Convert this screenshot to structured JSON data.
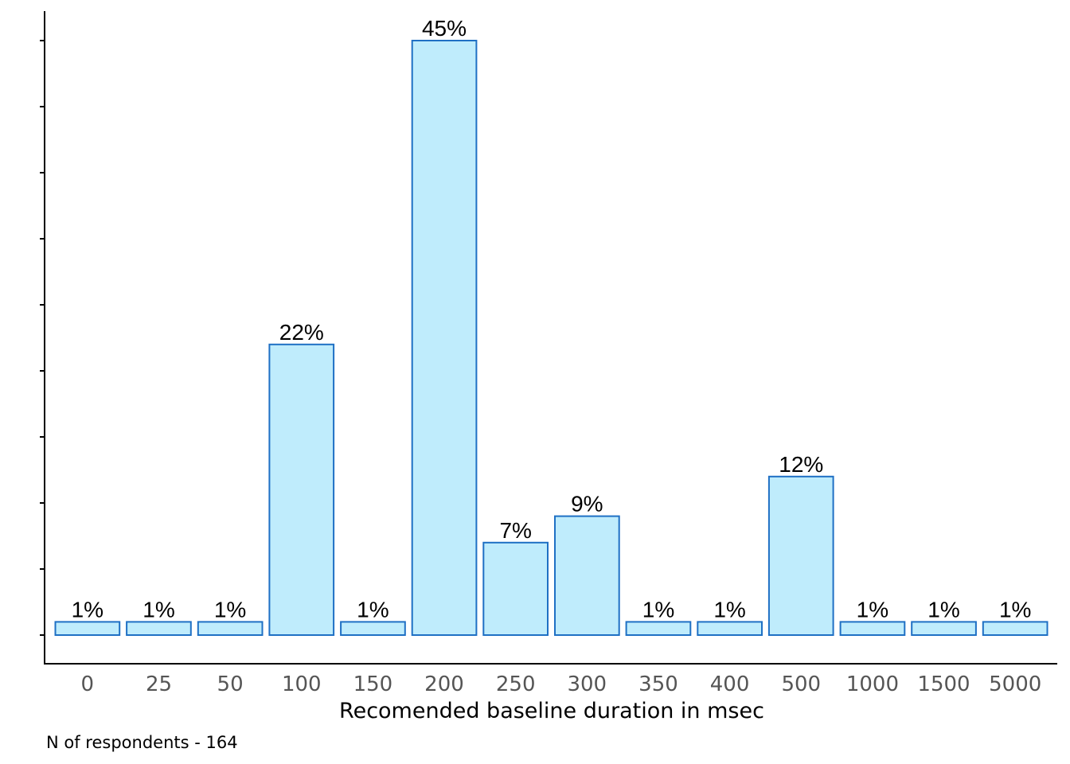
{
  "chart_data": {
    "type": "bar",
    "categories": [
      "0",
      "25",
      "50",
      "100",
      "150",
      "200",
      "250",
      "300",
      "350",
      "400",
      "500",
      "1000",
      "1500",
      "5000"
    ],
    "values": [
      1,
      1,
      1,
      22,
      1,
      45,
      7,
      9,
      1,
      1,
      12,
      1,
      1,
      1
    ],
    "data_labels": [
      "1%",
      "1%",
      "1%",
      "22%",
      "1%",
      "45%",
      "7%",
      "9%",
      "1%",
      "1%",
      "12%",
      "1%",
      "1%",
      "1%"
    ],
    "xlabel": "Recomended baseline duration in msec",
    "ylabel": "",
    "ylim": [
      -1,
      47
    ],
    "y_tick_count": 10,
    "caption": "N of respondents - 164",
    "grid": false,
    "colors": {
      "bar_fill": "#bfecfc",
      "bar_stroke": "#1f70c4",
      "tick_text": "#555555"
    }
  }
}
